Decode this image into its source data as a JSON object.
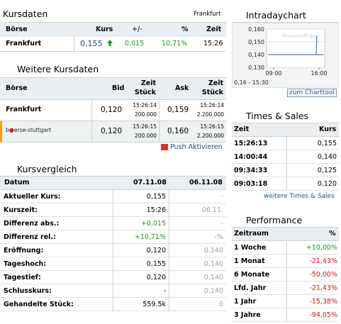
{
  "kursdaten": {
    "title": "Kursdaten",
    "exchange": "Frankfurt",
    "headers": {
      "boerse": "Börse",
      "kurs": "Kurs",
      "change_abs": "+/-",
      "change_pct": "%",
      "zeit": "Zeit"
    },
    "row": {
      "boerse": "Frankfurt",
      "kurs": "0,155",
      "change_abs": "0,015",
      "change_pct": "10,71%",
      "zeit": "15:26"
    }
  },
  "weitere": {
    "title": "Weitere Kursdaten",
    "headers": {
      "boerse": "Börse",
      "bid": "Bid",
      "zeit1": "Zeit",
      "stueck1": "Stück",
      "ask": "Ask",
      "zeit2": "Zeit",
      "stueck2": "Stück"
    },
    "rows": [
      {
        "boerse": "Frankfurt",
        "bid": "0,120",
        "bid_time": "15:26:14",
        "bid_qty": "200.000",
        "ask": "0,159",
        "ask_time": "15:26:14",
        "ask_qty": "2.200.000"
      },
      {
        "boerse": "boerse-stuttgart",
        "bid": "0,120",
        "bid_time": "15:26:15",
        "bid_qty": "200.000",
        "ask": "0,160",
        "ask_time": "15:26:15",
        "ask_qty": "2.200.000"
      }
    ],
    "push_label": "Push Aktivieren"
  },
  "kursvergleich": {
    "title": "Kursvergleich",
    "headers": {
      "datum": "Datum",
      "d1": "07.11.08",
      "d2": "06.11.08"
    },
    "rows": [
      {
        "label": "Aktueller Kurs:",
        "v1": "0,155",
        "v2": "-"
      },
      {
        "label": "Kurszeit:",
        "v1": "15:26",
        "v2": "06.11."
      },
      {
        "label": "Differenz abs.:",
        "v1": "+0,015",
        "v2": "-"
      },
      {
        "label": "Differenz rel.:",
        "v1": "+10,71%",
        "v2": "-%"
      },
      {
        "label": "Eröffnung:",
        "v1": "0,120",
        "v2": "0,140"
      },
      {
        "label": "Tageshoch:",
        "v1": "0,155",
        "v2": "0,140"
      },
      {
        "label": "Tagestief:",
        "v1": "0,120",
        "v2": "0,140"
      },
      {
        "label": "Schlusskurs:",
        "v1": "-",
        "v2": "0,140"
      },
      {
        "label": "Gehandelte Stück:",
        "v1": "559.5k",
        "v2": "0"
      }
    ]
  },
  "intraday": {
    "title": "Intradaychart",
    "y_labels": [
      "0,160",
      "0,150",
      "0,140",
      "0,130"
    ],
    "x_labels": [
      "09:00",
      "16:00"
    ],
    "range_text": "0,16 - 15:30",
    "watermark": "finanztreff.de",
    "link": "zum Charttool",
    "chart_data": {
      "type": "line",
      "x": [
        "09:00",
        "15:25",
        "15:26"
      ],
      "y": [
        0.14,
        0.14,
        0.155
      ],
      "reference_line": 0.14,
      "ylim": [
        0.13,
        0.16
      ],
      "colors": {
        "price": "#3a7fd6",
        "reference": "#cc2222"
      }
    }
  },
  "times_sales": {
    "title": "Times & Sales",
    "headers": {
      "zeit": "Zeit",
      "kurs": "Kurs"
    },
    "rows": [
      {
        "zeit": "15:26:13",
        "kurs": "0,155"
      },
      {
        "zeit": "14:00:44",
        "kurs": "0,140"
      },
      {
        "zeit": "09:34:33",
        "kurs": "0,125"
      },
      {
        "zeit": "09:03:18",
        "kurs": "0,120"
      }
    ],
    "link": "weitere Times & Sales"
  },
  "performance": {
    "title": "Performance",
    "headers": {
      "zeitraum": "Zeitraum",
      "pct": "%"
    },
    "rows": [
      {
        "label": "1 Woche",
        "value": "+10,00%",
        "sign": "pos"
      },
      {
        "label": "1 Monat",
        "value": "-21,43%",
        "sign": "neg"
      },
      {
        "label": "6 Monate",
        "value": "-50,00%",
        "sign": "neg"
      },
      {
        "label": "Lfd. Jahr",
        "value": "-21,43%",
        "sign": "neg"
      },
      {
        "label": "1 Jahr",
        "value": "-15,38%",
        "sign": "neg"
      },
      {
        "label": "3 Jahre",
        "value": "-94,05%",
        "sign": "neg"
      }
    ]
  },
  "colors": {
    "positive": "#1a9e1a",
    "negative": "#d11a1a",
    "link": "#1f4e8c",
    "header_bg": "#e9eef2",
    "stuttgart_accent": "#f0a020"
  }
}
